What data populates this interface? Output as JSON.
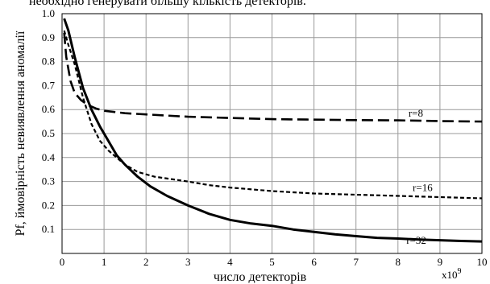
{
  "top_caption": "необхідно генерувати більшу кількість детекторів.",
  "chart_data": {
    "type": "line",
    "title": "",
    "xlabel": "число детекторів",
    "ylabel": "Pf, ймовірність невиявлення аномалії",
    "x_multiplier": "x10",
    "x_multiplier_exp": "9",
    "xlim": [
      0,
      10
    ],
    "ylim": [
      0,
      1.0
    ],
    "grid": true,
    "xticks": [
      "0",
      "1",
      "2",
      "3",
      "4",
      "5",
      "6",
      "7",
      "8",
      "9",
      "10"
    ],
    "yticks": [
      "0.1",
      "0.2",
      "0.3",
      "0.4",
      "0.5",
      "0.6",
      "0.7",
      "0.8",
      "0.9",
      "1.0"
    ],
    "series": [
      {
        "name": "r=8",
        "style": "long-dash",
        "color": "#000000",
        "x": [
          0.05,
          0.1,
          0.2,
          0.3,
          0.45,
          0.6,
          0.8,
          1.0,
          1.5,
          2,
          3,
          4,
          5,
          6,
          7,
          8,
          9,
          10
        ],
        "y": [
          0.92,
          0.82,
          0.72,
          0.67,
          0.64,
          0.62,
          0.605,
          0.595,
          0.585,
          0.58,
          0.57,
          0.565,
          0.56,
          0.558,
          0.556,
          0.555,
          0.552,
          0.55
        ]
      },
      {
        "name": "r=16",
        "style": "short-dash",
        "color": "#000000",
        "x": [
          0.05,
          0.15,
          0.3,
          0.5,
          0.7,
          0.9,
          1.1,
          1.3,
          1.5,
          1.8,
          2.2,
          2.6,
          3,
          3.5,
          4,
          5,
          6,
          7,
          8,
          9,
          10
        ],
        "y": [
          0.93,
          0.87,
          0.79,
          0.65,
          0.54,
          0.47,
          0.43,
          0.4,
          0.37,
          0.34,
          0.32,
          0.31,
          0.3,
          0.285,
          0.275,
          0.26,
          0.25,
          0.245,
          0.24,
          0.235,
          0.23
        ]
      },
      {
        "name": "r=32",
        "style": "solid",
        "color": "#000000",
        "x": [
          0.05,
          0.15,
          0.3,
          0.5,
          0.7,
          0.9,
          1.1,
          1.3,
          1.5,
          1.8,
          2.1,
          2.5,
          3,
          3.5,
          4,
          4.5,
          5,
          5.5,
          6,
          6.5,
          7,
          7.5,
          8,
          8.5,
          9,
          9.5,
          10
        ],
        "y": [
          0.98,
          0.93,
          0.82,
          0.69,
          0.6,
          0.53,
          0.47,
          0.41,
          0.37,
          0.32,
          0.28,
          0.24,
          0.2,
          0.165,
          0.14,
          0.125,
          0.115,
          0.1,
          0.09,
          0.08,
          0.072,
          0.065,
          0.062,
          0.058,
          0.055,
          0.052,
          0.05
        ]
      }
    ],
    "series_label_pos": [
      {
        "x": 8.25,
        "y": 0.57
      },
      {
        "x": 8.35,
        "y": 0.26
      },
      {
        "x": 8.2,
        "y": 0.04
      }
    ]
  }
}
